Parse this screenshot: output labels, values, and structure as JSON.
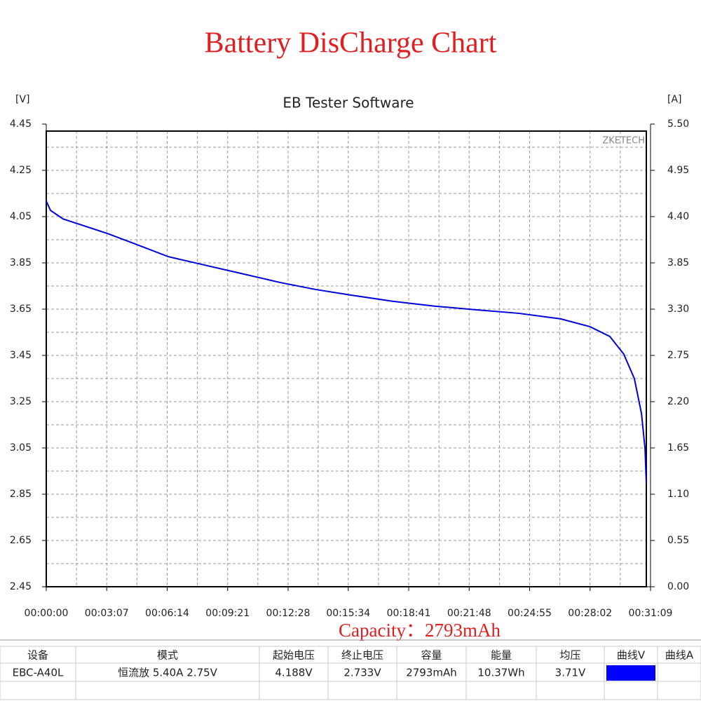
{
  "chart_data": {
    "type": "line",
    "title": "Battery DisCharge  Chart",
    "subtitle": "EB Tester Software",
    "watermark": "ZKETECH",
    "y_label": "[V]",
    "y2_label": "[A]",
    "annotation": "Capacity：2793mAh",
    "color": "#0000dd",
    "grid": true,
    "x": [
      0,
      13,
      52,
      139,
      189,
      269,
      377,
      507,
      616,
      724,
      833,
      941,
      1071,
      1201,
      1331,
      1461,
      1591,
      1682,
      1743,
      1786,
      1819,
      1841,
      1852,
      1856
    ],
    "values": [
      4.117,
      4.077,
      4.04,
      4.0,
      3.977,
      3.935,
      3.877,
      3.835,
      3.8,
      3.765,
      3.735,
      3.711,
      3.684,
      3.663,
      3.647,
      3.632,
      3.608,
      3.574,
      3.532,
      3.456,
      3.35,
      3.199,
      3.047,
      2.895
    ],
    "xlim": [
      0,
      1869
    ],
    "xticks": [
      {
        "value": 0,
        "label": "00:00:00"
      },
      {
        "value": 187,
        "label": "00:03:07"
      },
      {
        "value": 374,
        "label": "00:06:14"
      },
      {
        "value": 561,
        "label": "00:09:21"
      },
      {
        "value": 748,
        "label": "00:12:28"
      },
      {
        "value": 934,
        "label": "00:15:34"
      },
      {
        "value": 1121,
        "label": "00:18:41"
      },
      {
        "value": 1308,
        "label": "00:21:48"
      },
      {
        "value": 1495,
        "label": "00:24:55"
      },
      {
        "value": 1682,
        "label": "00:28:02"
      },
      {
        "value": 1869,
        "label": "00:31:09"
      }
    ],
    "ylim": [
      2.45,
      4.45
    ],
    "yticks": [
      2.45,
      2.65,
      2.85,
      3.05,
      3.25,
      3.45,
      3.65,
      3.85,
      4.05,
      4.25,
      4.45
    ],
    "y2lim": [
      0,
      5.5
    ],
    "y2ticks": [
      {
        "value": 0,
        "label": "0.00"
      },
      0.55,
      {
        "value": 1.1,
        "label": "1.10"
      },
      1.65,
      {
        "value": 2.2,
        "label": "2.20"
      },
      2.75,
      {
        "value": 3.3,
        "label": "3.30"
      },
      3.85,
      {
        "value": 4.4,
        "label": "4.40"
      },
      4.95,
      {
        "value": 5.5,
        "label": "5.50"
      }
    ]
  },
  "table": {
    "header": [
      "设备",
      "模式",
      "起始电压",
      "终止电压",
      "容量",
      "能量",
      "均压",
      "曲线V",
      "曲线A"
    ],
    "rows": [
      [
        "EBC-A40L",
        "恒流放  5.40A  2.75V",
        "4.188V",
        "2.733V",
        "2793mAh",
        "10.37Wh",
        "3.71V"
      ]
    ],
    "swatch_color": "#0000ff"
  }
}
